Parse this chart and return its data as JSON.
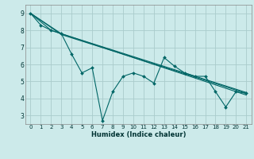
{
  "xlabel": "Humidex (Indice chaleur)",
  "bg_color": "#cceaea",
  "grid_color": "#aacccc",
  "line_color": "#006666",
  "xlim": [
    -0.5,
    21.5
  ],
  "ylim": [
    2.5,
    9.5
  ],
  "xticks": [
    0,
    1,
    2,
    3,
    4,
    5,
    6,
    7,
    8,
    9,
    10,
    11,
    12,
    13,
    14,
    15,
    16,
    17,
    18,
    19,
    20,
    21
  ],
  "yticks": [
    3,
    4,
    5,
    6,
    7,
    8,
    9
  ],
  "series_zigzag": {
    "x": [
      0,
      1,
      2,
      3,
      4,
      5,
      6,
      7,
      8,
      9,
      10,
      11,
      12,
      13,
      14,
      15,
      16,
      17,
      18,
      19,
      20,
      21
    ],
    "y": [
      9.0,
      8.3,
      8.0,
      7.8,
      6.6,
      5.5,
      5.8,
      2.7,
      4.4,
      5.3,
      5.5,
      5.3,
      4.9,
      6.4,
      5.9,
      5.5,
      5.3,
      5.3,
      4.4,
      3.5,
      4.4,
      4.3
    ]
  },
  "series_lines": [
    {
      "x": [
        0,
        2,
        3,
        21
      ],
      "y": [
        9.0,
        8.0,
        7.8,
        4.35
      ]
    },
    {
      "x": [
        0,
        3,
        21
      ],
      "y": [
        9.0,
        7.75,
        4.3
      ]
    },
    {
      "x": [
        0,
        3,
        21
      ],
      "y": [
        9.0,
        7.8,
        4.2
      ]
    }
  ]
}
